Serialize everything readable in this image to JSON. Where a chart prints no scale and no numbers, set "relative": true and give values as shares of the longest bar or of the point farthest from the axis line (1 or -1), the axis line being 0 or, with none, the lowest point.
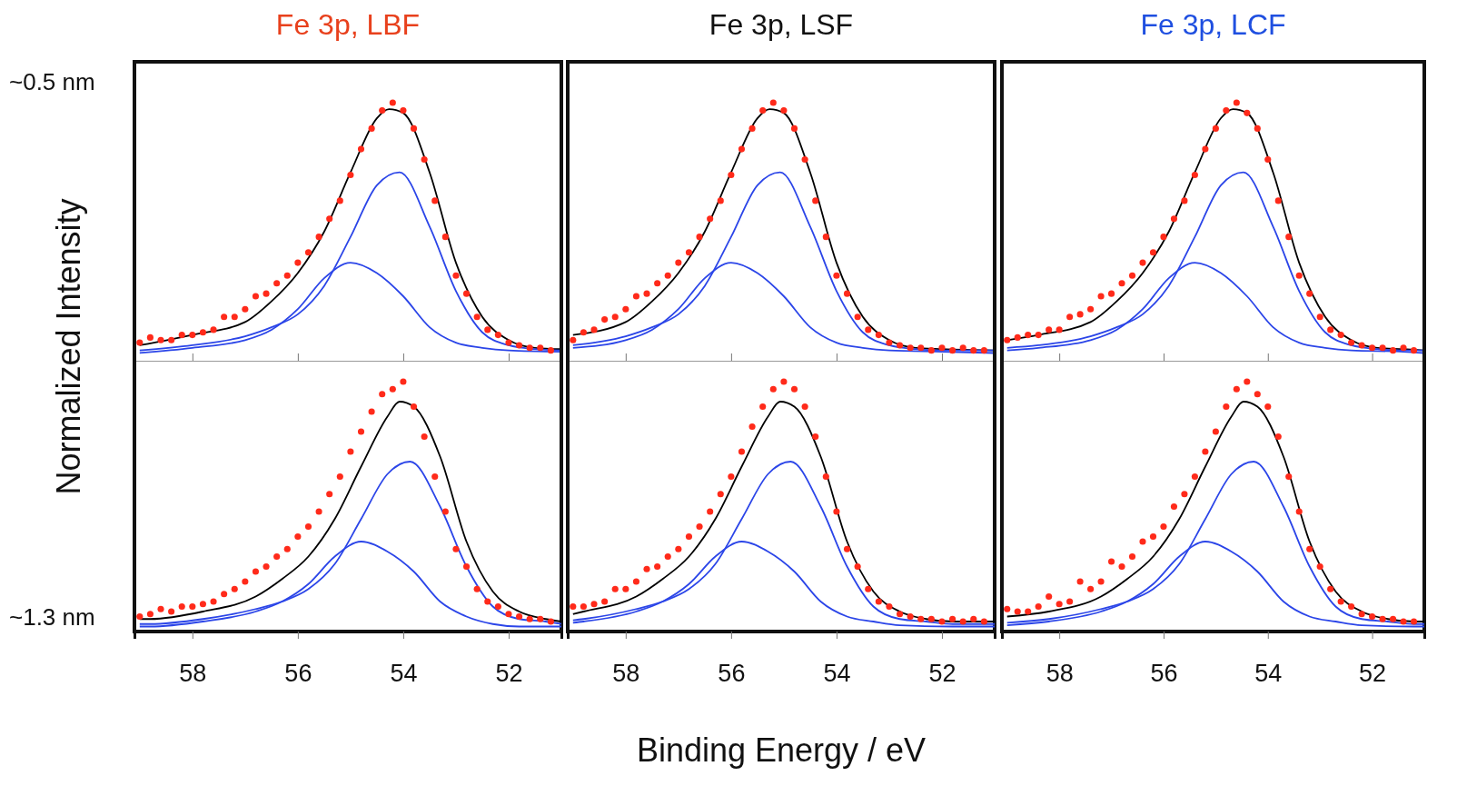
{
  "chart_data": [
    {
      "type": "line",
      "title": "Fe 3p, LBF",
      "ylabel": "Normalized Intensity",
      "annotations": [
        "~0.5 nm"
      ],
      "relative": true,
      "xlim": [
        59.1,
        51.0
      ],
      "xticks": [
        58,
        56,
        54,
        52
      ],
      "tick_labels": false,
      "x": [
        59,
        58.8,
        58.6,
        58.4,
        58.2,
        58,
        57.8,
        57.6,
        57.4,
        57.2,
        57,
        56.8,
        56.6,
        56.4,
        56.2,
        56,
        55.8,
        55.6,
        55.4,
        55.2,
        55,
        54.8,
        54.6,
        54.4,
        54.2,
        54,
        53.8,
        53.6,
        53.4,
        53.2,
        53,
        52.8,
        52.6,
        52.4,
        52.2,
        52,
        51.8,
        51.6,
        51.4,
        51.2
      ],
      "series": [
        {
          "type": "scatter",
          "marker": "circle",
          "color": "#ff2a1a",
          "values": [
            0.07,
            0.09,
            0.08,
            0.08,
            0.1,
            0.1,
            0.11,
            0.12,
            0.17,
            0.17,
            0.2,
            0.25,
            0.26,
            0.3,
            0.33,
            0.38,
            0.42,
            0.48,
            0.55,
            0.62,
            0.72,
            0.82,
            0.9,
            0.97,
            1.0,
            0.97,
            0.9,
            0.78,
            0.62,
            0.48,
            0.33,
            0.26,
            0.17,
            0.12,
            0.1,
            0.07,
            0.06,
            0.05,
            0.05,
            0.04
          ]
        },
        {
          "color": "#000000",
          "x": [
            59,
            58,
            57,
            56.5,
            56,
            55.5,
            55,
            54.5,
            54.27,
            54,
            53.5,
            53,
            52.5,
            52,
            51.5,
            51
          ],
          "values": [
            0.06,
            0.1,
            0.15,
            0.23,
            0.34,
            0.5,
            0.73,
            0.94,
            0.975,
            0.96,
            0.73,
            0.38,
            0.17,
            0.08,
            0.05,
            0.045
          ]
        },
        {
          "color": "#2b45e8",
          "x": [
            59,
            58,
            57,
            56.5,
            56,
            55.5,
            55,
            54.5,
            54.07,
            53.5,
            53,
            52.5,
            52,
            51.5,
            51
          ],
          "values": [
            0.04,
            0.06,
            0.095,
            0.13,
            0.18,
            0.29,
            0.48,
            0.68,
            0.73,
            0.52,
            0.27,
            0.11,
            0.06,
            0.045,
            0.04
          ]
        },
        {
          "color": "#2b45e8",
          "x": [
            59,
            58,
            57,
            56.5,
            56,
            55.5,
            55,
            54.5,
            54,
            53.5,
            53,
            52.5,
            52,
            51
          ],
          "values": [
            0.03,
            0.05,
            0.08,
            0.12,
            0.2,
            0.32,
            0.38,
            0.34,
            0.25,
            0.13,
            0.07,
            0.05,
            0.04,
            0.035
          ]
        }
      ]
    },
    {
      "type": "line",
      "title": "Fe 3p, LSF",
      "relative": true,
      "xlim": [
        59.1,
        51.0
      ],
      "xticks": [
        58,
        56,
        54,
        52
      ],
      "tick_labels": false,
      "x": [
        59,
        58.8,
        58.6,
        58.4,
        58.2,
        58,
        57.8,
        57.6,
        57.4,
        57.2,
        57,
        56.8,
        56.6,
        56.4,
        56.2,
        56,
        55.8,
        55.6,
        55.4,
        55.2,
        55,
        54.8,
        54.6,
        54.4,
        54.2,
        54,
        53.8,
        53.6,
        53.4,
        53.2,
        53,
        52.8,
        52.6,
        52.4,
        52.2,
        52,
        51.8,
        51.6,
        51.4,
        51.2
      ],
      "series": [
        {
          "type": "scatter",
          "marker": "circle",
          "color": "#ff2a1a",
          "values": [
            0.08,
            0.11,
            0.12,
            0.16,
            0.17,
            0.2,
            0.25,
            0.26,
            0.3,
            0.33,
            0.38,
            0.42,
            0.48,
            0.55,
            0.62,
            0.72,
            0.82,
            0.9,
            0.97,
            1.0,
            0.97,
            0.9,
            0.78,
            0.62,
            0.48,
            0.33,
            0.26,
            0.17,
            0.12,
            0.1,
            0.07,
            0.06,
            0.05,
            0.05,
            0.04,
            0.05,
            0.04,
            0.05,
            0.04,
            0.04
          ]
        },
        {
          "color": "#000000",
          "x": [
            59,
            58,
            57.5,
            57,
            56.5,
            56,
            55.5,
            55.27,
            55,
            54.5,
            54,
            53.5,
            53,
            52.5,
            52,
            51
          ],
          "values": [
            0.1,
            0.15,
            0.23,
            0.34,
            0.5,
            0.73,
            0.94,
            0.975,
            0.96,
            0.73,
            0.38,
            0.17,
            0.08,
            0.05,
            0.045,
            0.04
          ]
        },
        {
          "color": "#2b45e8",
          "x": [
            59,
            58,
            57.5,
            57,
            56.5,
            56,
            55.5,
            55.07,
            54.5,
            54,
            53.5,
            53,
            52.5,
            52,
            51
          ],
          "values": [
            0.06,
            0.095,
            0.13,
            0.18,
            0.29,
            0.48,
            0.68,
            0.73,
            0.52,
            0.27,
            0.11,
            0.06,
            0.045,
            0.04,
            0.04
          ]
        },
        {
          "color": "#2b45e8",
          "x": [
            59,
            58,
            57.5,
            57,
            56.5,
            56,
            55.5,
            55,
            54.5,
            54,
            53.5,
            53,
            52,
            51
          ],
          "values": [
            0.05,
            0.08,
            0.12,
            0.2,
            0.32,
            0.38,
            0.34,
            0.25,
            0.13,
            0.07,
            0.05,
            0.04,
            0.035,
            0.03
          ]
        }
      ]
    },
    {
      "type": "line",
      "title": "Fe 3p, LCF",
      "relative": true,
      "xlim": [
        59.1,
        51.0
      ],
      "xticks": [
        58,
        56,
        54,
        52
      ],
      "tick_labels": false,
      "x": [
        59,
        58.8,
        58.6,
        58.4,
        58.2,
        58,
        57.8,
        57.6,
        57.4,
        57.2,
        57,
        56.8,
        56.6,
        56.4,
        56.2,
        56,
        55.8,
        55.6,
        55.4,
        55.2,
        55,
        54.8,
        54.6,
        54.4,
        54.2,
        54,
        53.8,
        53.6,
        53.4,
        53.2,
        53,
        52.8,
        52.6,
        52.4,
        52.2,
        52,
        51.8,
        51.6,
        51.4,
        51.2
      ],
      "series": [
        {
          "type": "scatter",
          "marker": "circle",
          "color": "#ff2a1a",
          "values": [
            0.08,
            0.09,
            0.1,
            0.1,
            0.12,
            0.12,
            0.17,
            0.18,
            0.2,
            0.25,
            0.26,
            0.3,
            0.33,
            0.38,
            0.42,
            0.48,
            0.55,
            0.62,
            0.72,
            0.82,
            0.9,
            0.97,
            1.0,
            0.96,
            0.9,
            0.78,
            0.62,
            0.48,
            0.33,
            0.26,
            0.17,
            0.12,
            0.1,
            0.07,
            0.06,
            0.05,
            0.05,
            0.04,
            0.05,
            0.04
          ]
        },
        {
          "color": "#000000",
          "x": [
            59,
            58.4,
            57.4,
            56.9,
            56.4,
            55.9,
            55.4,
            54.9,
            54.67,
            54.4,
            53.9,
            53.4,
            52.9,
            52.4,
            51.9,
            51.4,
            51
          ],
          "values": [
            0.08,
            0.1,
            0.15,
            0.23,
            0.34,
            0.5,
            0.73,
            0.94,
            0.975,
            0.96,
            0.73,
            0.38,
            0.17,
            0.08,
            0.05,
            0.045,
            0.04
          ]
        },
        {
          "color": "#2b45e8",
          "x": [
            59,
            58.4,
            57.4,
            56.9,
            56.4,
            55.9,
            55.4,
            54.9,
            54.47,
            53.9,
            53.4,
            52.9,
            52.4,
            51.9,
            51.4,
            51
          ],
          "values": [
            0.05,
            0.06,
            0.095,
            0.13,
            0.18,
            0.29,
            0.48,
            0.68,
            0.73,
            0.52,
            0.27,
            0.11,
            0.06,
            0.045,
            0.04,
            0.04
          ]
        },
        {
          "color": "#2b45e8",
          "x": [
            59,
            58.4,
            57.4,
            56.9,
            56.4,
            55.9,
            55.4,
            54.9,
            54.4,
            53.9,
            53.4,
            52.9,
            52.4,
            51.4,
            51
          ],
          "values": [
            0.04,
            0.05,
            0.08,
            0.12,
            0.2,
            0.32,
            0.38,
            0.34,
            0.25,
            0.13,
            0.07,
            0.05,
            0.04,
            0.035,
            0.03
          ]
        }
      ]
    },
    {
      "type": "line",
      "annotations": [
        "~1.3 nm"
      ],
      "relative": true,
      "xlim": [
        59.1,
        51.0
      ],
      "xticks": [
        58,
        56,
        54,
        52
      ],
      "tick_labels": "x",
      "x": [
        59,
        58.8,
        58.6,
        58.4,
        58.2,
        58,
        57.8,
        57.6,
        57.4,
        57.2,
        57,
        56.8,
        56.6,
        56.4,
        56.2,
        56,
        55.8,
        55.6,
        55.4,
        55.2,
        55,
        54.8,
        54.6,
        54.4,
        54.2,
        54,
        53.8,
        53.6,
        53.4,
        53.2,
        53,
        52.8,
        52.6,
        52.4,
        52.2,
        52,
        51.8,
        51.6,
        51.4,
        51.2
      ],
      "series": [
        {
          "type": "scatter",
          "marker": "circle",
          "color": "#ff2a1a",
          "values": [
            0.06,
            0.07,
            0.09,
            0.08,
            0.1,
            0.1,
            0.11,
            0.12,
            0.15,
            0.17,
            0.2,
            0.24,
            0.26,
            0.3,
            0.33,
            0.38,
            0.42,
            0.48,
            0.55,
            0.62,
            0.72,
            0.8,
            0.88,
            0.95,
            0.97,
            1.0,
            0.9,
            0.78,
            0.62,
            0.48,
            0.33,
            0.26,
            0.17,
            0.12,
            0.1,
            0.07,
            0.06,
            0.05,
            0.05,
            0.04
          ]
        },
        {
          "color": "#000000",
          "x": [
            59,
            58.8,
            57.8,
            56.8,
            56.3,
            55.8,
            55.3,
            54.8,
            54.3,
            54.07,
            53.8,
            53.3,
            52.8,
            52.3,
            51.8,
            51.3,
            51
          ],
          "values": [
            0.05,
            0.05,
            0.08,
            0.14,
            0.21,
            0.3,
            0.45,
            0.66,
            0.86,
            0.92,
            0.9,
            0.7,
            0.36,
            0.16,
            0.08,
            0.05,
            0.04
          ]
        },
        {
          "color": "#2b45e8",
          "x": [
            59,
            58.8,
            57.8,
            56.8,
            56.3,
            55.8,
            55.3,
            54.8,
            54.3,
            53.87,
            53.3,
            52.8,
            52.3,
            51.8,
            51.3,
            51
          ],
          "values": [
            0.03,
            0.03,
            0.05,
            0.09,
            0.12,
            0.17,
            0.27,
            0.45,
            0.63,
            0.68,
            0.5,
            0.26,
            0.1,
            0.05,
            0.04,
            0.03
          ]
        },
        {
          "color": "#2b45e8",
          "x": [
            59,
            58.8,
            57.8,
            56.8,
            56.3,
            55.8,
            55.3,
            54.8,
            54.3,
            53.8,
            53.3,
            52.8,
            52.3,
            51.8,
            51
          ],
          "values": [
            0.02,
            0.02,
            0.04,
            0.08,
            0.12,
            0.19,
            0.3,
            0.36,
            0.32,
            0.24,
            0.12,
            0.06,
            0.03,
            0.02,
            0.02
          ]
        }
      ]
    },
    {
      "type": "line",
      "xlabel": "Binding Energy / eV",
      "relative": true,
      "xlim": [
        59.1,
        51.0
      ],
      "xticks": [
        58,
        56,
        54,
        52
      ],
      "tick_labels": "x",
      "x": [
        59,
        58.8,
        58.6,
        58.4,
        58.2,
        58,
        57.8,
        57.6,
        57.4,
        57.2,
        57,
        56.8,
        56.6,
        56.4,
        56.2,
        56,
        55.8,
        55.6,
        55.4,
        55.2,
        55,
        54.8,
        54.6,
        54.4,
        54.2,
        54,
        53.8,
        53.6,
        53.4,
        53.2,
        53,
        52.8,
        52.6,
        52.4,
        52.2,
        52,
        51.8,
        51.6,
        51.4,
        51.2
      ],
      "series": [
        {
          "type": "scatter",
          "marker": "circle",
          "color": "#ff2a1a",
          "values": [
            0.1,
            0.1,
            0.11,
            0.12,
            0.17,
            0.17,
            0.2,
            0.25,
            0.26,
            0.3,
            0.33,
            0.38,
            0.42,
            0.48,
            0.55,
            0.62,
            0.72,
            0.82,
            0.9,
            0.97,
            1.0,
            0.97,
            0.9,
            0.78,
            0.62,
            0.48,
            0.33,
            0.26,
            0.17,
            0.12,
            0.1,
            0.07,
            0.06,
            0.05,
            0.05,
            0.04,
            0.05,
            0.04,
            0.05,
            0.04
          ]
        },
        {
          "color": "#000000",
          "x": [
            59,
            58.8,
            57.8,
            57.3,
            56.8,
            56.3,
            55.8,
            55.3,
            55.07,
            54.8,
            54.3,
            53.8,
            53.3,
            52.8,
            52.3,
            51.8,
            51
          ],
          "values": [
            0.07,
            0.08,
            0.14,
            0.21,
            0.3,
            0.45,
            0.66,
            0.86,
            0.92,
            0.9,
            0.7,
            0.36,
            0.16,
            0.08,
            0.05,
            0.04,
            0.04
          ]
        },
        {
          "color": "#2b45e8",
          "x": [
            59,
            58.8,
            57.8,
            57.3,
            56.8,
            56.3,
            55.8,
            55.3,
            54.87,
            54.3,
            53.8,
            53.3,
            52.8,
            52.3,
            51.8,
            51
          ],
          "values": [
            0.045,
            0.05,
            0.09,
            0.12,
            0.17,
            0.27,
            0.45,
            0.63,
            0.68,
            0.5,
            0.26,
            0.1,
            0.05,
            0.04,
            0.03,
            0.03
          ]
        },
        {
          "color": "#2b45e8",
          "x": [
            59,
            58.8,
            57.8,
            57.3,
            56.8,
            56.3,
            55.8,
            55.3,
            54.8,
            54.3,
            53.8,
            53.3,
            52.8,
            51.8,
            51
          ],
          "values": [
            0.035,
            0.04,
            0.08,
            0.12,
            0.19,
            0.3,
            0.36,
            0.32,
            0.24,
            0.12,
            0.06,
            0.04,
            0.025,
            0.02,
            0.02
          ]
        }
      ]
    },
    {
      "type": "line",
      "relative": true,
      "xlim": [
        59.1,
        51.0
      ],
      "xticks": [
        58,
        56,
        54,
        52
      ],
      "tick_labels": "x",
      "x": [
        59,
        58.8,
        58.6,
        58.4,
        58.2,
        58,
        57.8,
        57.6,
        57.4,
        57.2,
        57,
        56.8,
        56.6,
        56.4,
        56.2,
        56,
        55.8,
        55.6,
        55.4,
        55.2,
        55,
        54.8,
        54.6,
        54.4,
        54.2,
        54,
        53.8,
        53.6,
        53.4,
        53.2,
        53,
        52.8,
        52.6,
        52.4,
        52.2,
        52,
        51.8,
        51.6,
        51.4,
        51.2
      ],
      "series": [
        {
          "type": "scatter",
          "marker": "circle",
          "color": "#ff2a1a",
          "values": [
            0.09,
            0.08,
            0.08,
            0.1,
            0.14,
            0.11,
            0.12,
            0.2,
            0.17,
            0.2,
            0.28,
            0.26,
            0.3,
            0.36,
            0.38,
            0.42,
            0.5,
            0.55,
            0.62,
            0.72,
            0.8,
            0.9,
            0.97,
            1.0,
            0.95,
            0.9,
            0.78,
            0.62,
            0.48,
            0.33,
            0.26,
            0.17,
            0.12,
            0.1,
            0.07,
            0.06,
            0.05,
            0.05,
            0.04,
            0.04
          ]
        },
        {
          "color": "#000000",
          "x": [
            59,
            58.2,
            57.2,
            56.7,
            56.2,
            55.7,
            55.2,
            54.7,
            54.47,
            54.2,
            53.7,
            53.2,
            52.7,
            52.2,
            51.7,
            51.2,
            51
          ],
          "values": [
            0.06,
            0.08,
            0.14,
            0.21,
            0.3,
            0.45,
            0.66,
            0.86,
            0.92,
            0.9,
            0.7,
            0.36,
            0.16,
            0.08,
            0.05,
            0.04,
            0.04
          ]
        },
        {
          "color": "#2b45e8",
          "x": [
            59,
            58.2,
            57.2,
            56.7,
            56.2,
            55.7,
            55.2,
            54.7,
            54.27,
            53.7,
            53.2,
            52.7,
            52.2,
            51.7,
            51.2,
            51
          ],
          "values": [
            0.035,
            0.05,
            0.09,
            0.12,
            0.17,
            0.27,
            0.45,
            0.63,
            0.68,
            0.5,
            0.26,
            0.1,
            0.05,
            0.04,
            0.03,
            0.03
          ]
        },
        {
          "color": "#2b45e8",
          "x": [
            59,
            58.2,
            57.2,
            56.7,
            56.2,
            55.7,
            55.2,
            54.7,
            54.2,
            53.7,
            53.2,
            52.7,
            52.2,
            51.2,
            51
          ],
          "values": [
            0.025,
            0.04,
            0.08,
            0.12,
            0.19,
            0.3,
            0.36,
            0.32,
            0.24,
            0.12,
            0.06,
            0.04,
            0.025,
            0.02,
            0.02
          ]
        }
      ]
    }
  ]
}
